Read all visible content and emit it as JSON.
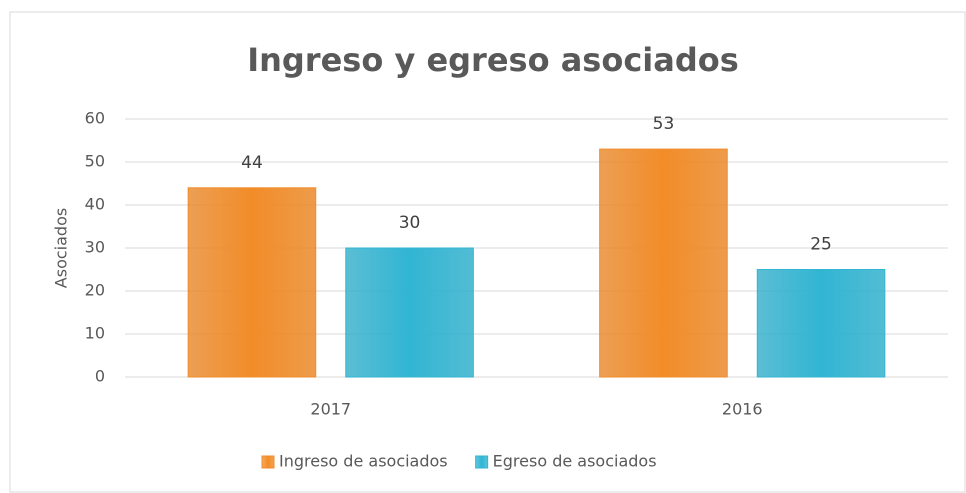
{
  "chart_data": {
    "type": "bar",
    "title": "Ingreso y egreso asociados",
    "y_label": "Asociados",
    "categories": [
      "2017",
      "2016"
    ],
    "series": [
      {
        "name": "Ingreso de asociados",
        "color": "#f28c28",
        "values": [
          44,
          53
        ]
      },
      {
        "name": "Egreso de asociados",
        "color": "#31b5d3",
        "values": [
          30,
          25
        ]
      }
    ],
    "ylim": [
      0,
      60
    ],
    "yticks": [
      0,
      10,
      20,
      30,
      40,
      50,
      60
    ],
    "grid": true,
    "legend": "bottom"
  }
}
